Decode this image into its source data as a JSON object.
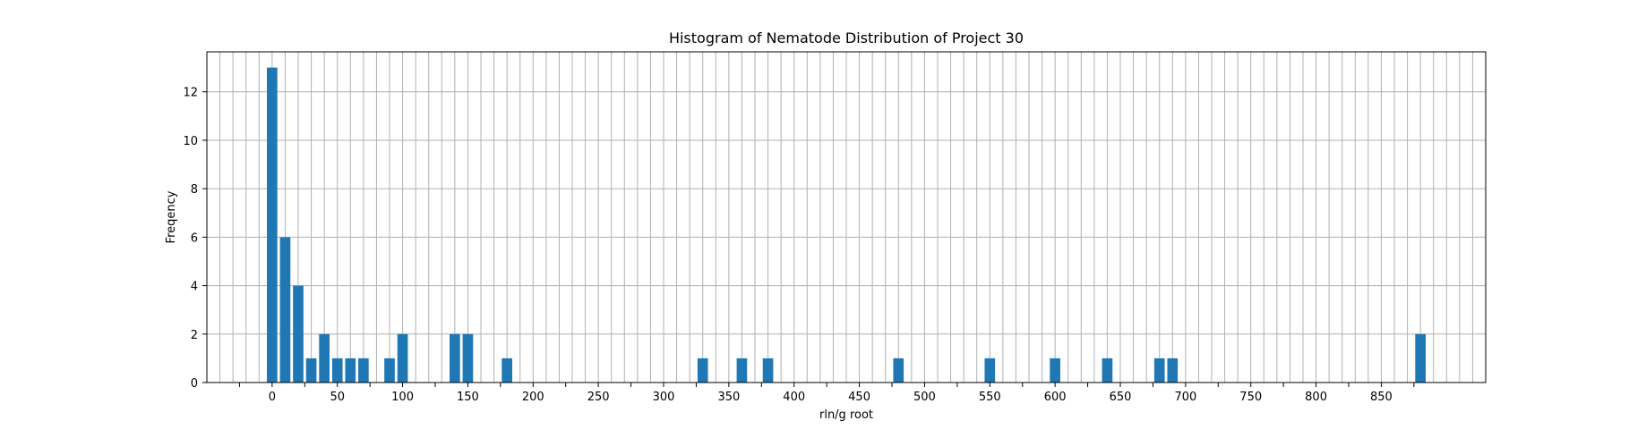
{
  "chart_data": {
    "type": "bar",
    "title": "Histogram of Nematode Distribution of Project 30",
    "xlabel": "rln/g root",
    "ylabel": "Freqency",
    "bin_width": 10,
    "x": [
      0,
      10,
      20,
      30,
      40,
      50,
      60,
      70,
      90,
      100,
      140,
      150,
      180,
      330,
      360,
      380,
      480,
      550,
      600,
      640,
      680,
      690,
      880
    ],
    "values": [
      13,
      6,
      4,
      1,
      2,
      1,
      1,
      1,
      1,
      2,
      2,
      2,
      1,
      1,
      1,
      1,
      1,
      1,
      1,
      1,
      1,
      1,
      2
    ],
    "xlim": [
      -50,
      930
    ],
    "ylim": [
      0,
      13.65
    ],
    "xticks": [
      0,
      50,
      100,
      150,
      200,
      250,
      300,
      350,
      400,
      450,
      500,
      550,
      600,
      650,
      700,
      750,
      800,
      850
    ],
    "yticks": [
      0,
      2,
      4,
      6,
      8,
      10,
      12
    ],
    "x_grid_step": 10,
    "grid": true,
    "bar_color": "#1f77b4"
  }
}
